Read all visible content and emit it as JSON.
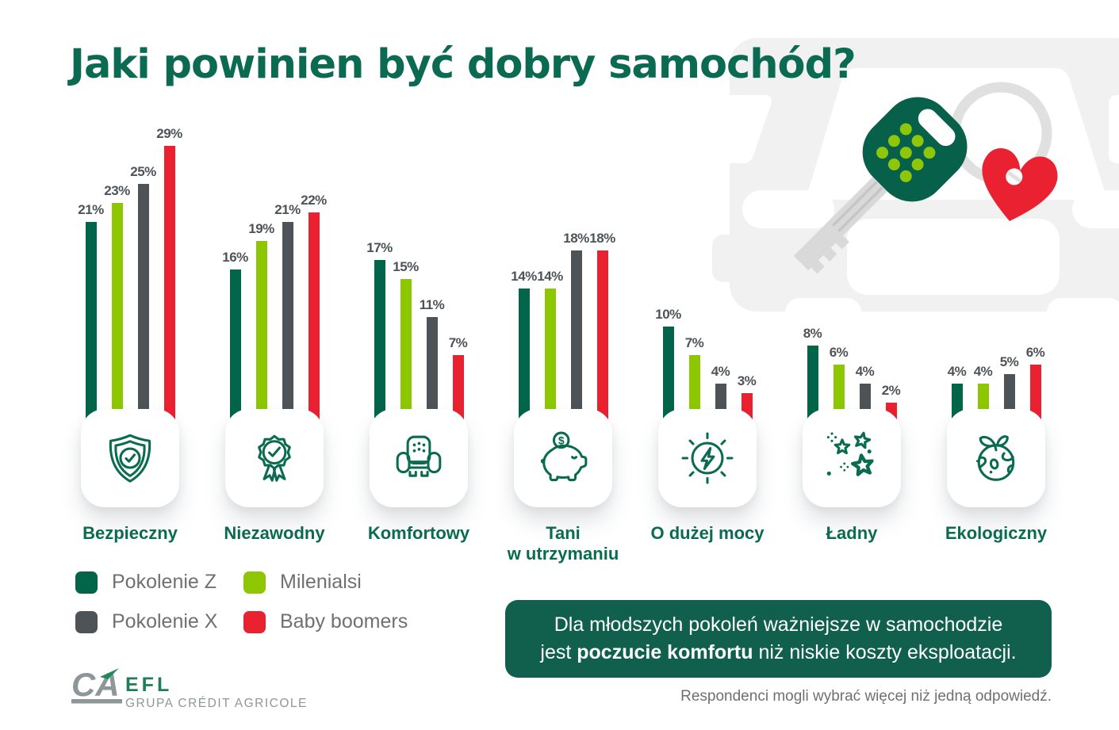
{
  "title": "Jaki powinien być dobry samochód?",
  "chart_data": {
    "type": "bar",
    "categories": [
      "Bezpieczny",
      "Niezawodny",
      "Komfortowy",
      "Tani\nw utrzymaniu",
      "O dużej mocy",
      "Ładny",
      "Ekologiczny"
    ],
    "icons": [
      "shield-check",
      "medal-check",
      "armchair",
      "piggy-bank",
      "power-bolt",
      "stars",
      "eco-globe"
    ],
    "series": [
      {
        "name": "Pokolenie Z",
        "color": "#02654a",
        "values": [
          21,
          16,
          17,
          14,
          10,
          8,
          4
        ]
      },
      {
        "name": "Milenialsi",
        "color": "#8cc702",
        "values": [
          23,
          19,
          15,
          14,
          7,
          6,
          4
        ]
      },
      {
        "name": "Pokolenie X",
        "color": "#4d5356",
        "values": [
          25,
          21,
          11,
          18,
          4,
          4,
          5
        ]
      },
      {
        "name": "Baby boomers",
        "color": "#e92130",
        "values": [
          29,
          22,
          7,
          18,
          3,
          2,
          6
        ]
      }
    ],
    "value_suffix": "%",
    "value_labels_shown": true,
    "axes_shown": false,
    "legend_position": "bottom-left"
  },
  "legend": {
    "items": [
      {
        "label": "Pokolenie Z",
        "color": "#02654a"
      },
      {
        "label": "Milenialsi",
        "color": "#8cc702"
      },
      {
        "label": "Pokolenie X",
        "color": "#4d5356"
      },
      {
        "label": "Baby boomers",
        "color": "#e92130"
      }
    ]
  },
  "callout": {
    "line1": "Dla młodszych pokoleń ważniejsze w samochodzie",
    "line2_pre": "jest ",
    "line2_bold": "poczucie komfortu",
    "line2_post": " niż niskie koszty eksploatacji."
  },
  "footnote": "Respondenci mogli wybrać więcej niż jedną odpowiedź.",
  "logo": {
    "monogram": "CA",
    "name": "EFL",
    "subtitle": "GRUPA CRÉDIT AGRICOLE"
  },
  "colors": {
    "brand_green": "#0a6b51",
    "title_green": "#0b6b52",
    "callout_bg": "#10604d",
    "label_gray": "#4d5357",
    "text_gray": "#6f7072",
    "key_dot_green": "#8ec709",
    "heart_red": "#e92130"
  }
}
